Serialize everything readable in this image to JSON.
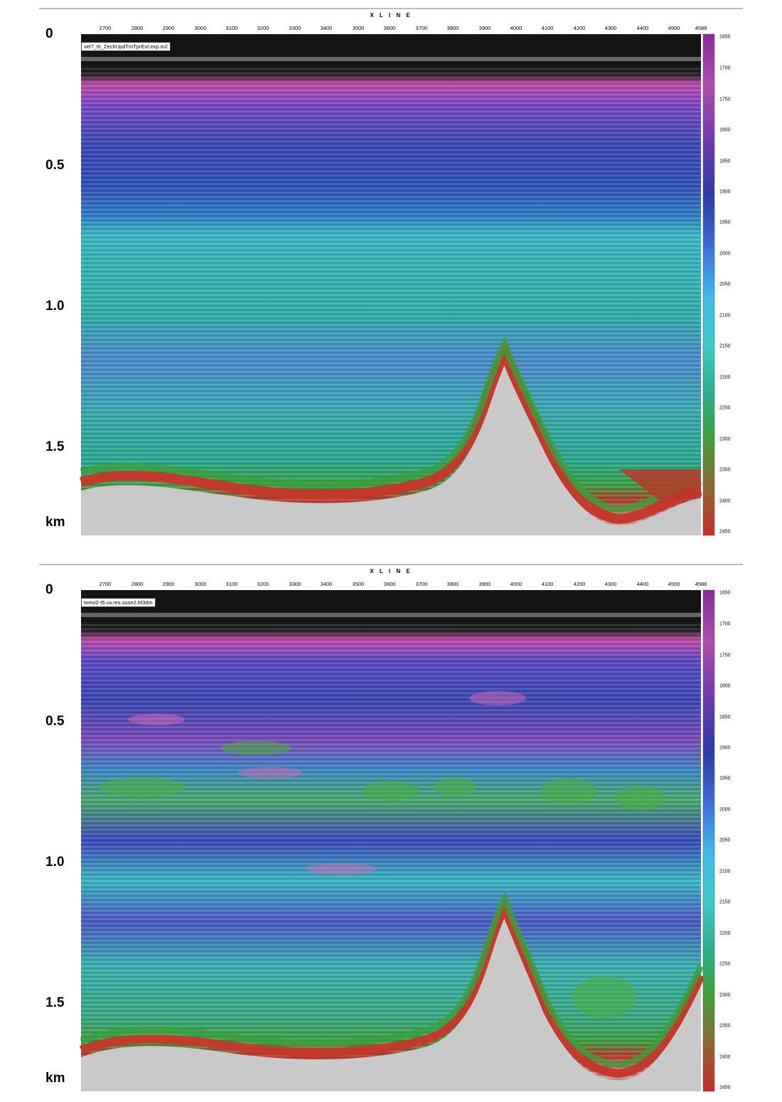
{
  "axis": {
    "xline_title": "X L I N E",
    "xline_ticks": [
      "2700",
      "2800",
      "2900",
      "3000",
      "3100",
      "3200",
      "3300",
      "3400",
      "3500",
      "3600",
      "3700",
      "3800",
      "3900",
      "4000",
      "4100",
      "4200",
      "4300",
      "4400",
      "4500",
      "4588"
    ],
    "depth_ticks": [
      "0",
      "0.5",
      "1.0",
      "1.5",
      "km"
    ],
    "colorbar_ticks": [
      "1650",
      "1700",
      "1750",
      "1800",
      "1850",
      "1900",
      "1950",
      "2000",
      "2050",
      "2100",
      "2150",
      "2200",
      "2250",
      "2300",
      "2350",
      "2400",
      "2450"
    ]
  },
  "panels": [
    {
      "volume_label": "vel7_tti_ZechUpdTmTprExt.exp.m2"
    },
    {
      "volume_label": "tomo2-t5.uv.res.sose2.M3dm"
    }
  ],
  "colors": {
    "colorbar": [
      "#cc2a2a",
      "#8a6a30",
      "#3aa33a",
      "#2ab08a",
      "#3ec9c9",
      "#3fb8ee",
      "#3a6ad8",
      "#2a3aa8",
      "#7a3ab0",
      "#b04ab0",
      "#8a2a9a"
    ]
  }
}
